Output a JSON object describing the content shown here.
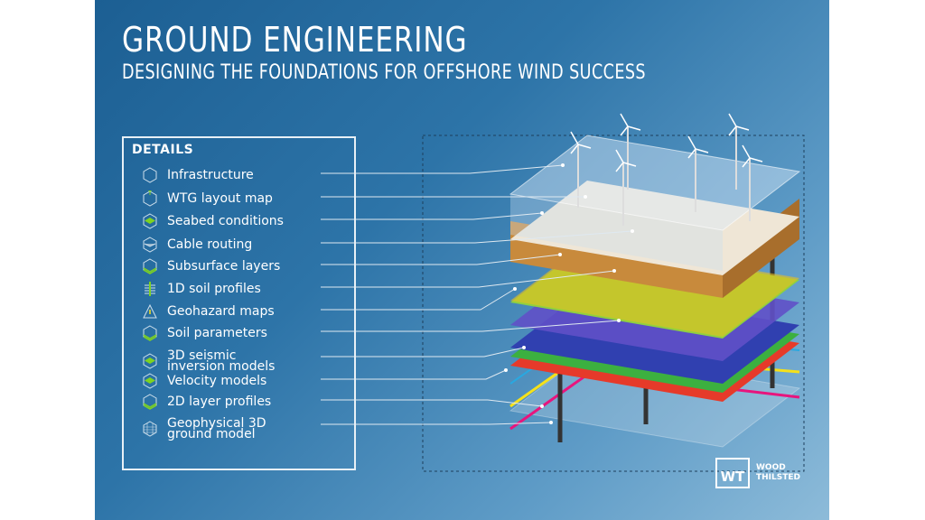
{
  "header": {
    "title": "GROUND ENGINEERING",
    "subtitle": "DESIGNING THE FOUNDATIONS FOR OFFSHORE WIND SUCCESS"
  },
  "details": {
    "heading": "DETAILS",
    "items": [
      {
        "label": "Infrastructure",
        "icon": "cube-icon"
      },
      {
        "label": "WTG layout map",
        "icon": "turbine-cube-icon"
      },
      {
        "label": "Seabed conditions",
        "icon": "green-cube-icon"
      },
      {
        "label": "Cable routing",
        "icon": "cable-cube-icon"
      },
      {
        "label": "Subsurface layers",
        "icon": "layers-icon"
      },
      {
        "label": "1D soil profiles",
        "icon": "soil-profile-icon"
      },
      {
        "label": "Geohazard maps",
        "icon": "warning-icon"
      },
      {
        "label": "Soil parameters",
        "icon": "layers-icon"
      },
      {
        "label": "3D seismic\ninversion models",
        "icon": "green-cube-icon"
      },
      {
        "label": "Velocity models",
        "icon": "green-cube-icon"
      },
      {
        "label": "2D layer profiles",
        "icon": "layers-icon"
      },
      {
        "label": "Geophysical 3D\nground model",
        "icon": "grid-cube-icon"
      }
    ]
  },
  "logo": {
    "mark": "WT",
    "name_line1": "WOOD",
    "name_line2": "THILSTED"
  },
  "colors": {
    "accent": "#7ed321",
    "cyan_line": "#29a8e0",
    "yellow_line": "#f5e11a",
    "magenta_line": "#e8157d"
  }
}
